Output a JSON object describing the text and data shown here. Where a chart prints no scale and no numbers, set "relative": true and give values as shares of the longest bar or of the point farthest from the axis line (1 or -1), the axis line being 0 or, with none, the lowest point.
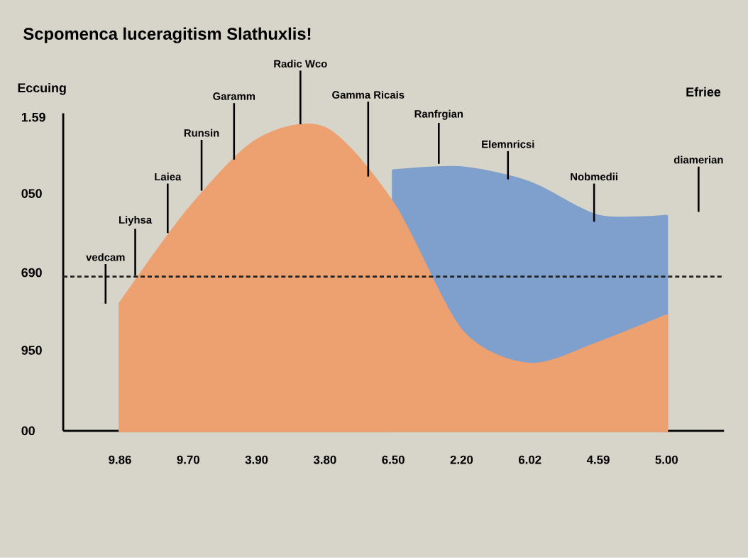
{
  "chart_data": {
    "type": "area",
    "title": "Scpomenca luceragitism Slathuxlis!",
    "ylabel": "Eccuing",
    "relative": true,
    "categories": [
      "9.86",
      "9.70",
      "3.90",
      "3.80",
      "6.50",
      "2.20",
      "6.02",
      "4.59",
      "5.00"
    ],
    "series": [
      {
        "color": "#7fa0cc",
        "values": [
          null,
          null,
          null,
          null,
          0.86,
          0.87,
          0.82,
          0.71,
          0.71
        ]
      },
      {
        "color": "#eda070",
        "values": [
          0.42,
          0.73,
          0.96,
          1,
          0.75,
          0.33,
          0.22,
          0.29,
          0.38
        ]
      }
    ],
    "ref_lines": [
      {
        "axis": "y",
        "value": 0.51,
        "color": "#222222",
        "line_style": "dotted"
      }
    ],
    "annotations": [
      "vedcam",
      "Liyhsa",
      "Laiea",
      "Runsin",
      "Garamm",
      "Radic Wco",
      "Gamma Ricais",
      "Ranfrgian",
      "Elemnricsi",
      "Nobmedii",
      "diamerian",
      "Efriee",
      "1.59",
      "050",
      "690",
      "950",
      "00"
    ]
  }
}
